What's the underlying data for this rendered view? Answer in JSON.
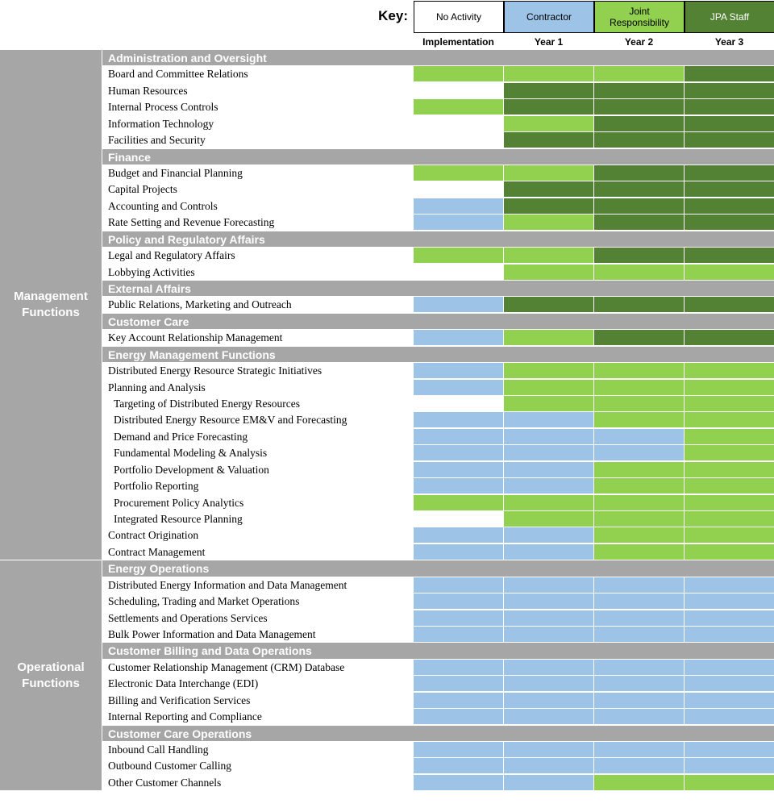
{
  "key": {
    "title": "Key:",
    "items": [
      {
        "label": "No Activity",
        "color": "#ffffff",
        "text_color": "#000000"
      },
      {
        "label": "Contractor",
        "color": "#9dc3e6",
        "text_color": "#000000"
      },
      {
        "label": "Joint Responsibility",
        "color": "#92d050",
        "text_color": "#000000"
      },
      {
        "label": "JPA Staff",
        "color": "#548235",
        "text_color": "#ffffff"
      }
    ]
  },
  "columns": [
    "Implementation",
    "Year 1",
    "Year 2",
    "Year 3"
  ],
  "groups": [
    {
      "label": "Management Functions",
      "sections": [
        {
          "title": "Administration and Oversight",
          "rows": [
            {
              "label": "Board and Committee Relations",
              "cells": [
                "Joint Responsibility",
                "Joint Responsibility",
                "Joint Responsibility",
                "JPA Staff"
              ]
            },
            {
              "label": "Human Resources",
              "cells": [
                "No Activity",
                "JPA Staff",
                "JPA Staff",
                "JPA Staff"
              ]
            },
            {
              "label": "Internal Process Controls",
              "cells": [
                "Joint Responsibility",
                "JPA Staff",
                "JPA Staff",
                "JPA Staff"
              ]
            },
            {
              "label": "Information Technology",
              "cells": [
                "No Activity",
                "Joint Responsibility",
                "JPA Staff",
                "JPA Staff"
              ]
            },
            {
              "label": "Facilities and Security",
              "cells": [
                "No Activity",
                "JPA Staff",
                "JPA Staff",
                "JPA Staff"
              ]
            }
          ]
        },
        {
          "title": "Finance",
          "rows": [
            {
              "label": "Budget and Financial Planning",
              "cells": [
                "Joint Responsibility",
                "Joint Responsibility",
                "JPA Staff",
                "JPA Staff"
              ]
            },
            {
              "label": "Capital Projects",
              "cells": [
                "No Activity",
                "JPA Staff",
                "JPA Staff",
                "JPA Staff"
              ]
            },
            {
              "label": "Accounting and Controls",
              "cells": [
                "Contractor",
                "JPA Staff",
                "JPA Staff",
                "JPA Staff"
              ]
            },
            {
              "label": "Rate Setting and Revenue Forecasting",
              "cells": [
                "Contractor",
                "Joint Responsibility",
                "JPA Staff",
                "JPA Staff"
              ]
            }
          ]
        },
        {
          "title": "Policy and Regulatory Affairs",
          "rows": [
            {
              "label": "Legal and Regulatory Affairs",
              "cells": [
                "Joint Responsibility",
                "Joint Responsibility",
                "JPA Staff",
                "JPA Staff"
              ]
            },
            {
              "label": "Lobbying Activities",
              "cells": [
                "No Activity",
                "Joint Responsibility",
                "Joint Responsibility",
                "Joint Responsibility"
              ]
            }
          ]
        },
        {
          "title": "External Affairs",
          "rows": [
            {
              "label": "Public Relations, Marketing and Outreach",
              "cells": [
                "Contractor",
                "JPA Staff",
                "JPA Staff",
                "JPA Staff"
              ]
            }
          ]
        },
        {
          "title": "Customer Care",
          "rows": [
            {
              "label": "Key Account Relationship Management",
              "cells": [
                "Contractor",
                "Joint Responsibility",
                "JPA Staff",
                "JPA Staff"
              ]
            }
          ]
        },
        {
          "title": "Energy Management Functions",
          "rows": [
            {
              "label": "Distributed Energy Resource Strategic Initiatives",
              "cells": [
                "Contractor",
                "Joint Responsibility",
                "Joint Responsibility",
                "Joint Responsibility"
              ]
            },
            {
              "label": "Planning and Analysis",
              "cells": [
                "Contractor",
                "Joint Responsibility",
                "Joint Responsibility",
                "Joint Responsibility"
              ]
            },
            {
              "label": "Targeting of Distributed Energy Resources",
              "cells": [
                "No Activity",
                "Joint Responsibility",
                "Joint Responsibility",
                "Joint Responsibility"
              ]
            },
            {
              "label": "Distributed Energy Resource EM&V and Forecasting",
              "cells": [
                "Contractor",
                "Contractor",
                "Joint Responsibility",
                "Joint Responsibility"
              ]
            },
            {
              "label": "Demand and Price Forecasting",
              "cells": [
                "Contractor",
                "Contractor",
                "Contractor",
                "Joint Responsibility"
              ]
            },
            {
              "label": "Fundamental Modeling & Analysis",
              "cells": [
                "Contractor",
                "Contractor",
                "Contractor",
                "Joint Responsibility"
              ]
            },
            {
              "label": "Portfolio Development & Valuation",
              "cells": [
                "Contractor",
                "Contractor",
                "Joint Responsibility",
                "Joint Responsibility"
              ]
            },
            {
              "label": "Portfolio Reporting",
              "cells": [
                "Contractor",
                "Contractor",
                "Joint Responsibility",
                "Joint Responsibility"
              ]
            },
            {
              "label": "Procurement Policy Analytics",
              "cells": [
                "Joint Responsibility",
                "Joint Responsibility",
                "Joint Responsibility",
                "Joint Responsibility"
              ]
            },
            {
              "label": "Integrated Resource Planning",
              "cells": [
                "No Activity",
                "Joint Responsibility",
                "Joint Responsibility",
                "Joint Responsibility"
              ]
            },
            {
              "label": "Contract Origination",
              "cells": [
                "Contractor",
                "Contractor",
                "Joint Responsibility",
                "Joint Responsibility"
              ]
            },
            {
              "label": "Contract Management",
              "cells": [
                "Contractor",
                "Contractor",
                "Joint Responsibility",
                "Joint Responsibility"
              ]
            }
          ]
        }
      ]
    },
    {
      "label": "Operational Functions",
      "sections": [
        {
          "title": "Energy Operations",
          "rows": [
            {
              "label": "Distributed Energy Information and Data Management",
              "cells": [
                "Contractor",
                "Contractor",
                "Contractor",
                "Contractor"
              ]
            },
            {
              "label": "Scheduling, Trading and Market Operations",
              "cells": [
                "Contractor",
                "Contractor",
                "Contractor",
                "Contractor"
              ]
            },
            {
              "label": "Settlements and Operations Services",
              "cells": [
                "Contractor",
                "Contractor",
                "Contractor",
                "Contractor"
              ]
            },
            {
              "label": "Bulk Power Information and Data Management",
              "cells": [
                "Contractor",
                "Contractor",
                "Contractor",
                "Contractor"
              ]
            }
          ]
        },
        {
          "title": "Customer Billing and Data Operations",
          "rows": [
            {
              "label": "Customer Relationship Management (CRM) Database",
              "cells": [
                "Contractor",
                "Contractor",
                "Contractor",
                "Contractor"
              ]
            },
            {
              "label": "Electronic Data Interchange (EDI)",
              "cells": [
                "Contractor",
                "Contractor",
                "Contractor",
                "Contractor"
              ]
            },
            {
              "label": "Billing and Verification Services",
              "cells": [
                "Contractor",
                "Contractor",
                "Contractor",
                "Contractor"
              ]
            },
            {
              "label": "Internal Reporting and Compliance",
              "cells": [
                "Contractor",
                "Contractor",
                "Contractor",
                "Contractor"
              ]
            }
          ]
        },
        {
          "title": "Customer Care Operations",
          "rows": [
            {
              "label": "Inbound Call Handling",
              "cells": [
                "Contractor",
                "Contractor",
                "Contractor",
                "Contractor"
              ]
            },
            {
              "label": "Outbound Customer Calling",
              "cells": [
                "Contractor",
                "Contractor",
                "Contractor",
                "Contractor"
              ]
            },
            {
              "label": "Other Customer Channels",
              "cells": [
                "Contractor",
                "Contractor",
                "Joint Responsibility",
                "Joint Responsibility"
              ]
            }
          ]
        }
      ]
    }
  ]
}
